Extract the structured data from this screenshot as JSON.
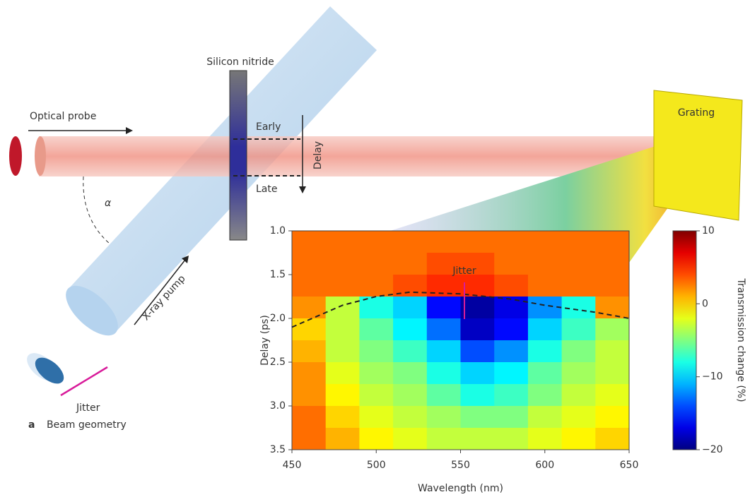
{
  "diagram": {
    "silicon_nitride": "Silicon nitride",
    "optical_probe": "Optical probe",
    "early": "Early",
    "late": "Late",
    "delay": "Delay",
    "alpha": "α",
    "xray_pump": "X-ray pump",
    "jitter": "Jitter",
    "grating": "Grating",
    "panel_letter": "a",
    "panel_title": "Beam geometry"
  },
  "chart_data": {
    "type": "heatmap",
    "xlabel": "Wavelength (nm)",
    "ylabel": "Delay (ps)",
    "annotation": "Jitter",
    "xlim": [
      450,
      650
    ],
    "xticks": [
      450,
      500,
      550,
      600,
      650
    ],
    "ylim": [
      1.0,
      3.5
    ],
    "y_inverted": true,
    "yticks": [
      {
        "value": 1,
        "label": "1.0"
      },
      1.5,
      {
        "value": 2,
        "label": "2.0"
      },
      2.5,
      {
        "value": 3,
        "label": "3.0"
      },
      3.5
    ],
    "x": [
      460,
      480,
      500,
      520,
      540,
      560,
      580,
      600,
      620,
      640
    ],
    "y": [
      1.125,
      1.375,
      1.625,
      1.875,
      2.125,
      2.375,
      2.625,
      2.875,
      3.125,
      3.375
    ],
    "values": [
      [
        3,
        3,
        3,
        3,
        3,
        3,
        3,
        3,
        3,
        3
      ],
      [
        3,
        3,
        3,
        3,
        4,
        4,
        3,
        3,
        3,
        3
      ],
      [
        3,
        3,
        3,
        4,
        5,
        5,
        4,
        3,
        3,
        3
      ],
      [
        2,
        -3,
        -8,
        -10,
        -16,
        -19,
        -17,
        -12,
        -8,
        2
      ],
      [
        0,
        -3,
        -6,
        -9,
        -13,
        -18,
        -16,
        -10,
        -7,
        -4
      ],
      [
        1,
        -3,
        -5,
        -7,
        -10,
        -14,
        -12,
        -8,
        -5,
        -3
      ],
      [
        2,
        -2,
        -4,
        -5,
        -8,
        -10,
        -9,
        -6,
        -4,
        -3
      ],
      [
        2,
        -1,
        -3,
        -4,
        -6,
        -8,
        -7,
        -5,
        -3,
        -2
      ],
      [
        3,
        0,
        -2,
        -3,
        -4,
        -5,
        -5,
        -3,
        -2,
        -1
      ],
      [
        3,
        1,
        -1,
        -2,
        -3,
        -3,
        -3,
        -2,
        -1,
        0
      ]
    ],
    "boundary": {
      "x": [
        450,
        480,
        500,
        520,
        550,
        580,
        600,
        630,
        650
      ],
      "y": [
        2.1,
        1.85,
        1.75,
        1.7,
        1.72,
        1.78,
        1.85,
        1.93,
        2.0
      ]
    },
    "colorbar": {
      "label": "Transmission change (%)",
      "lim": [
        -20,
        10
      ],
      "ticks": [
        {
          "value": -20,
          "label": "−20"
        },
        {
          "value": -10,
          "label": "−10"
        },
        0,
        10
      ]
    }
  }
}
